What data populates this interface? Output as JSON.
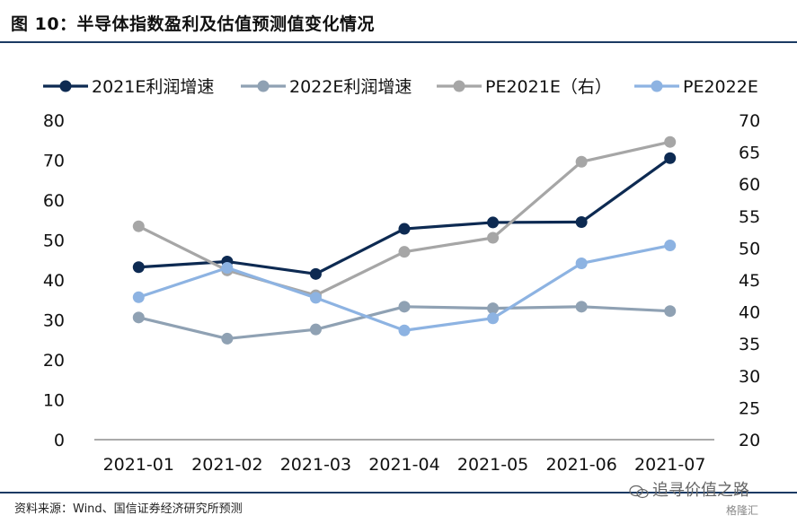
{
  "title": "图  10：半导体指数盈利及估值预测值变化情况",
  "source": "资料来源：Wind、国信证券经济研究所预测",
  "watermark": "追寻价值之路",
  "watermark2": "格隆汇",
  "colors": {
    "title_rule": "#1b3a63",
    "axis": "#555555"
  },
  "icons": {
    "watermark": "wechat-icon"
  },
  "chart_data": {
    "type": "line",
    "title": "",
    "xlabel": "",
    "ylabel": "",
    "categories": [
      "2021-01",
      "2021-02",
      "2021-03",
      "2021-04",
      "2021-05",
      "2021-06",
      "2021-07"
    ],
    "ylim_left": [
      0,
      80
    ],
    "yticks_left": [
      "0",
      "10",
      "20",
      "30",
      "40",
      "50",
      "60",
      "70",
      "80"
    ],
    "ylim_right": [
      20,
      70
    ],
    "yticks_right": [
      "20",
      "25",
      "30",
      "35",
      "40",
      "45",
      "50",
      "55",
      "60",
      "65",
      "70"
    ],
    "grid": false,
    "legend_position": "top",
    "series": [
      {
        "name": "2021E利润增速",
        "axis": "left",
        "color": "#0d2a52",
        "values": [
          43.2,
          44.6,
          41.5,
          52.8,
          54.4,
          54.5,
          70.5
        ]
      },
      {
        "name": "2022E利润增速",
        "axis": "left",
        "color": "#8fa1b3",
        "values": [
          30.6,
          25.3,
          27.6,
          33.3,
          32.9,
          33.3,
          32.2
        ]
      },
      {
        "name": "PE2021E（右）",
        "axis": "right",
        "color": "#a6a6a6",
        "values": [
          53.4,
          46.5,
          42.6,
          49.4,
          51.6,
          63.5,
          66.6
        ]
      },
      {
        "name": "PE2022E",
        "axis": "right",
        "color": "#8db3e2",
        "values": [
          42.3,
          46.9,
          42.2,
          37.1,
          39.0,
          47.6,
          50.4
        ]
      }
    ]
  }
}
